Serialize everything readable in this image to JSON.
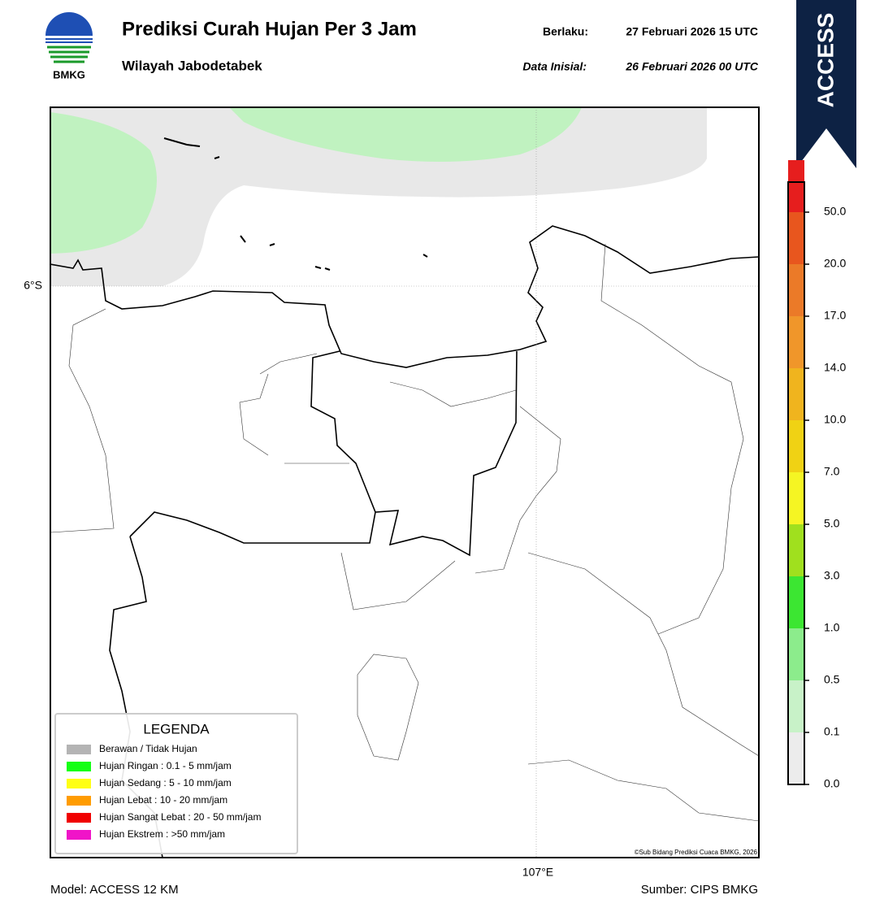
{
  "header": {
    "logo_text": "BMKG",
    "title": "Prediksi Curah Hujan Per 3 Jam",
    "subtitle": "Wilayah Jabodetabek",
    "valid_label": "Berlaku:",
    "valid_time": "27 Februari 2026 15 UTC",
    "init_label": "Data Inisial:",
    "init_time": "26 Februari 2026 00 UTC"
  },
  "banner": "ACCESS",
  "map": {
    "lat_label": "6°S",
    "lon_label": "107°E",
    "credit": "©Sub Bidang Prediksi Cuaca BMKG, 2026"
  },
  "legend": {
    "title": "LEGENDA",
    "items": [
      {
        "label": "Berawan / Tidak Hujan",
        "color": "#b4b4b4"
      },
      {
        "label": "Hujan Ringan : 0.1 - 5 mm/jam",
        "color": "#14ff14"
      },
      {
        "label": "Hujan Sedang : 5 - 10 mm/jam",
        "color": "#ffff14"
      },
      {
        "label": "Hujan Lebat : 10 - 20 mm/jam",
        "color": "#ff9c00"
      },
      {
        "label": "Hujan Sangat Lebat : 20 - 50 mm/jam",
        "color": "#f00000"
      },
      {
        "label": "Hujan Ekstrem : >50 mm/jam",
        "color": "#f014c8"
      }
    ]
  },
  "colorbar": {
    "ticks": [
      "0.0",
      "0.1",
      "0.5",
      "1.0",
      "3.0",
      "5.0",
      "7.0",
      "10.0",
      "14.0",
      "17.0",
      "20.0",
      "50.0"
    ],
    "colors": [
      "#ececec",
      "#c8f2c8",
      "#8cec8c",
      "#3ce632",
      "#a0e01e",
      "#f5f523",
      "#f0d214",
      "#f0b41e",
      "#f0962a",
      "#eb7a28",
      "#e8561e",
      "#e61e1e"
    ],
    "top_color": "#e61eb4"
  },
  "footer": {
    "model": "Model: ACCESS 12 KM",
    "source": "Sumber: CIPS BMKG"
  }
}
